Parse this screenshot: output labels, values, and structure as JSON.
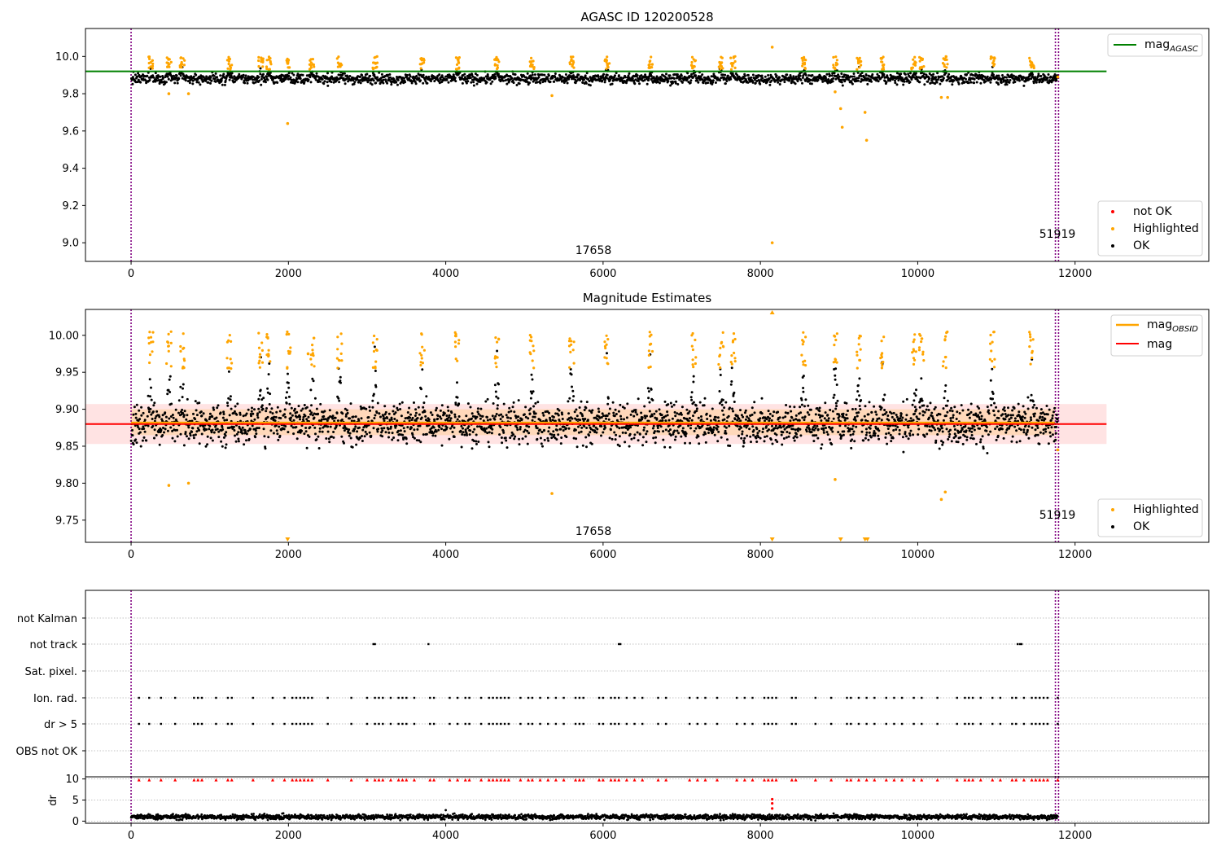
{
  "colors": {
    "ok": "#000000",
    "highlighted": "#ffa500",
    "not_ok": "#ff0000",
    "mag_agasc_line": "#008000",
    "mag_line": "#ff0000",
    "mag_obsid_line": "#ffa500",
    "mag_band": "#ffc0c0",
    "obs_boundary": "#800080",
    "flag_grid": "#b0b0b0"
  },
  "chart_data": [
    {
      "id": "agasc_panel",
      "type": "scatter",
      "title": "AGASC ID 120200528",
      "xlim": [
        -580,
        13700
      ],
      "ylim": [
        8.9,
        10.15
      ],
      "x_ticks": [
        0,
        2000,
        4000,
        6000,
        8000,
        10000,
        12000
      ],
      "x_tick_labels": [
        "0",
        "2000",
        "4000",
        "6000",
        "8000",
        "10000",
        "12000"
      ],
      "y_ticks": [
        9.0,
        9.2,
        9.4,
        9.6,
        9.8,
        10.0
      ],
      "y_tick_labels": [
        "9.0",
        "9.2",
        "9.4",
        "9.6",
        "9.8",
        "10.0"
      ],
      "grid": false,
      "mag_agasc": 9.92,
      "mag_agasc_xrange": [
        -580,
        12400
      ],
      "ok_band": {
        "center": 9.88,
        "spread": 0.025,
        "x_range": [
          0,
          11780
        ]
      },
      "highlight_clusters": [
        250,
        480,
        650,
        1250,
        1650,
        1750,
        2000,
        2300,
        2650,
        3100,
        3700,
        4150,
        4650,
        5100,
        5600,
        6050,
        6600,
        7150,
        7500,
        7650,
        8550,
        8950,
        9250,
        9550,
        9950,
        10050,
        10350,
        10950,
        11450
      ],
      "highlighted_outliers": [
        {
          "x": 480,
          "y": 9.8
        },
        {
          "x": 730,
          "y": 9.8
        },
        {
          "x": 1990,
          "y": 9.64
        },
        {
          "x": 5350,
          "y": 9.79
        },
        {
          "x": 8150,
          "y": 9.0
        },
        {
          "x": 8150,
          "y": 10.05
        },
        {
          "x": 8950,
          "y": 9.81
        },
        {
          "x": 9020,
          "y": 9.72
        },
        {
          "x": 9040,
          "y": 9.62
        },
        {
          "x": 9330,
          "y": 9.7
        },
        {
          "x": 9350,
          "y": 9.55
        },
        {
          "x": 10300,
          "y": 9.78
        },
        {
          "x": 10380,
          "y": 9.78
        },
        {
          "x": 11780,
          "y": 9.89
        }
      ],
      "obs_boundaries": [
        0,
        11750,
        11790
      ],
      "obs_labels": [
        {
          "text": "17658",
          "x": 5900,
          "y": 8.93
        },
        {
          "text": "51919",
          "x": 11650,
          "y": 9.01
        }
      ],
      "legend_lines": [
        {
          "label": "mag",
          "subscript": "AGASC",
          "color_key": "mag_agasc_line"
        }
      ],
      "legend_markers": [
        {
          "label": "not OK",
          "color_key": "not_ok"
        },
        {
          "label": "Highlighted",
          "color_key": "highlighted"
        },
        {
          "label": "OK",
          "color_key": "ok"
        }
      ]
    },
    {
      "id": "estimates_panel",
      "type": "scatter",
      "title": "Magnitude Estimates",
      "xlim": [
        -580,
        13700
      ],
      "ylim": [
        9.72,
        10.035
      ],
      "x_ticks": [
        0,
        2000,
        4000,
        6000,
        8000,
        10000,
        12000
      ],
      "x_tick_labels": [
        "0",
        "2000",
        "4000",
        "6000",
        "8000",
        "10000",
        "12000"
      ],
      "y_ticks": [
        9.75,
        9.8,
        9.85,
        9.9,
        9.95,
        10.0
      ],
      "y_tick_labels": [
        "9.75",
        "9.80",
        "9.85",
        "9.90",
        "9.95",
        "10.00"
      ],
      "grid": false,
      "mag": 9.88,
      "mag_xrange": [
        -580,
        12400
      ],
      "mag_band": [
        9.853,
        9.907
      ],
      "mag_obsid": 9.882,
      "mag_obsid_xrange": [
        0,
        11740
      ],
      "ok_band": {
        "center": 9.88,
        "spread": 0.025,
        "x_range": [
          0,
          11780
        ]
      },
      "highlighted_outliers": [
        {
          "x": 480,
          "y": 9.797
        },
        {
          "x": 730,
          "y": 9.8
        },
        {
          "x": 2250,
          "y": 9.975
        },
        {
          "x": 5350,
          "y": 9.786
        },
        {
          "x": 8950,
          "y": 9.805
        },
        {
          "x": 10300,
          "y": 9.778
        },
        {
          "x": 10350,
          "y": 9.788
        },
        {
          "x": 11780,
          "y": 9.845
        }
      ],
      "clipped_triangles": [
        {
          "x": 1990,
          "edge": "bottom"
        },
        {
          "x": 8150,
          "edge": "bottom"
        },
        {
          "x": 8150,
          "edge": "top"
        },
        {
          "x": 9020,
          "edge": "bottom"
        },
        {
          "x": 9330,
          "edge": "bottom"
        },
        {
          "x": 9360,
          "edge": "bottom"
        }
      ],
      "obs_boundaries": [
        0,
        11750,
        11790
      ],
      "obs_labels": [
        {
          "text": "17658",
          "x": 5900,
          "y": 9.731
        },
        {
          "text": "51919",
          "x": 11650,
          "y": 9.758
        }
      ],
      "legend_lines": [
        {
          "label": "mag",
          "subscript": "OBSID",
          "color_key": "mag_obsid_line"
        },
        {
          "label": "mag",
          "subscript": "",
          "color_key": "mag_line"
        }
      ],
      "legend_markers": [
        {
          "label": "Highlighted",
          "color_key": "highlighted"
        },
        {
          "label": "OK",
          "color_key": "ok"
        }
      ]
    },
    {
      "id": "flags_panel",
      "type": "scatter",
      "xlim": [
        -580,
        13700
      ],
      "categories": [
        "not Kalman",
        "not track",
        "Sat. pixel.",
        "Ion. rad.",
        "dr > 5",
        "OBS not OK"
      ],
      "grid": true,
      "not_track_x": [
        3080,
        3100,
        3780,
        6200,
        6220,
        11270,
        11300,
        11320
      ],
      "ion_rad_x": [
        100,
        230,
        380,
        560,
        800,
        850,
        900,
        1080,
        1230,
        1280,
        1550,
        1800,
        1950,
        2050,
        2100,
        2150,
        2200,
        2250,
        2300,
        2500,
        2800,
        3000,
        3100,
        3150,
        3200,
        3300,
        3400,
        3450,
        3500,
        3600,
        3800,
        3850,
        4050,
        4150,
        4250,
        4300,
        4450,
        4550,
        4600,
        4650,
        4700,
        4750,
        4800,
        4950,
        5050,
        5100,
        5200,
        5300,
        5400,
        5500,
        5650,
        5700,
        5750,
        5950,
        6000,
        6100,
        6150,
        6200,
        6300,
        6400,
        6500,
        6700,
        6800,
        7100,
        7200,
        7300,
        7450,
        7700,
        7800,
        7900,
        8050,
        8100,
        8150,
        8200,
        8400,
        8450,
        8700,
        8900,
        9100,
        9150,
        9250,
        9350,
        9450,
        9600,
        9700,
        9800,
        9950,
        10050,
        10250,
        10500,
        10600,
        10650,
        10700,
        10800,
        10950,
        11050,
        11200,
        11250,
        11350,
        11450,
        11500,
        11550,
        11600,
        11650,
        11780
      ],
      "dr_gt5_x": [
        100,
        230,
        380,
        560,
        800,
        850,
        900,
        1080,
        1230,
        1280,
        1550,
        1800,
        1950,
        2050,
        2100,
        2150,
        2200,
        2250,
        2300,
        2500,
        2800,
        3000,
        3100,
        3150,
        3200,
        3300,
        3400,
        3450,
        3500,
        3600,
        3800,
        3850,
        4050,
        4150,
        4250,
        4300,
        4450,
        4550,
        4600,
        4650,
        4700,
        4750,
        4800,
        4950,
        5050,
        5100,
        5200,
        5300,
        5400,
        5500,
        5650,
        5700,
        5750,
        5950,
        6000,
        6100,
        6150,
        6200,
        6300,
        6400,
        6500,
        6700,
        6800,
        7100,
        7200,
        7300,
        7450,
        7700,
        7800,
        7900,
        8050,
        8100,
        8150,
        8200,
        8400,
        8450,
        8700,
        8900,
        9100,
        9150,
        9250,
        9350,
        9450,
        9600,
        9700,
        9800,
        9950,
        10050,
        10250,
        10500,
        10600,
        10650,
        10700,
        10800,
        10950,
        11050,
        11200,
        11250,
        11350,
        11450,
        11500,
        11550,
        11600,
        11650,
        11780
      ],
      "obs_boundaries": [
        0,
        11750,
        11790
      ]
    },
    {
      "id": "dr_panel",
      "type": "scatter",
      "ylabel": "dr",
      "xlim": [
        -580,
        13700
      ],
      "ylim": [
        -0.5,
        10.5
      ],
      "x_ticks": [
        0,
        2000,
        4000,
        6000,
        8000,
        10000,
        12000
      ],
      "x_tick_labels": [
        "0",
        "2000",
        "4000",
        "6000",
        "8000",
        "10000",
        "12000"
      ],
      "y_ticks": [
        0,
        5,
        10
      ],
      "y_tick_labels": [
        "0",
        "5",
        "10"
      ],
      "ok_band": {
        "center": 1.0,
        "spread": 0.5,
        "x_range": [
          0,
          11780
        ]
      },
      "not_ok_clipped_x": [
        100,
        230,
        380,
        560,
        800,
        850,
        900,
        1080,
        1230,
        1280,
        1550,
        1800,
        1950,
        2050,
        2100,
        2150,
        2200,
        2250,
        2300,
        2500,
        2800,
        3000,
        3100,
        3150,
        3200,
        3300,
        3400,
        3450,
        3500,
        3600,
        3800,
        3850,
        4050,
        4150,
        4250,
        4300,
        4450,
        4550,
        4600,
        4650,
        4700,
        4750,
        4800,
        4950,
        5050,
        5100,
        5200,
        5300,
        5400,
        5500,
        5650,
        5700,
        5750,
        5950,
        6000,
        6100,
        6150,
        6200,
        6300,
        6400,
        6500,
        6700,
        6800,
        7100,
        7200,
        7300,
        7450,
        7700,
        7800,
        7900,
        8050,
        8100,
        8150,
        8200,
        8400,
        8450,
        8700,
        8900,
        9100,
        9150,
        9250,
        9350,
        9450,
        9600,
        9700,
        9800,
        9950,
        10050,
        10250,
        10500,
        10600,
        10650,
        10700,
        10800,
        10950,
        11050,
        11200,
        11250,
        11350,
        11450,
        11500,
        11550,
        11600,
        11650,
        11780
      ],
      "not_ok_points": [
        {
          "x": 8150,
          "y": 5.2
        },
        {
          "x": 8150,
          "y": 4.2
        },
        {
          "x": 8150,
          "y": 3.0
        }
      ],
      "obs_boundaries": [
        0,
        11750,
        11790
      ]
    }
  ]
}
